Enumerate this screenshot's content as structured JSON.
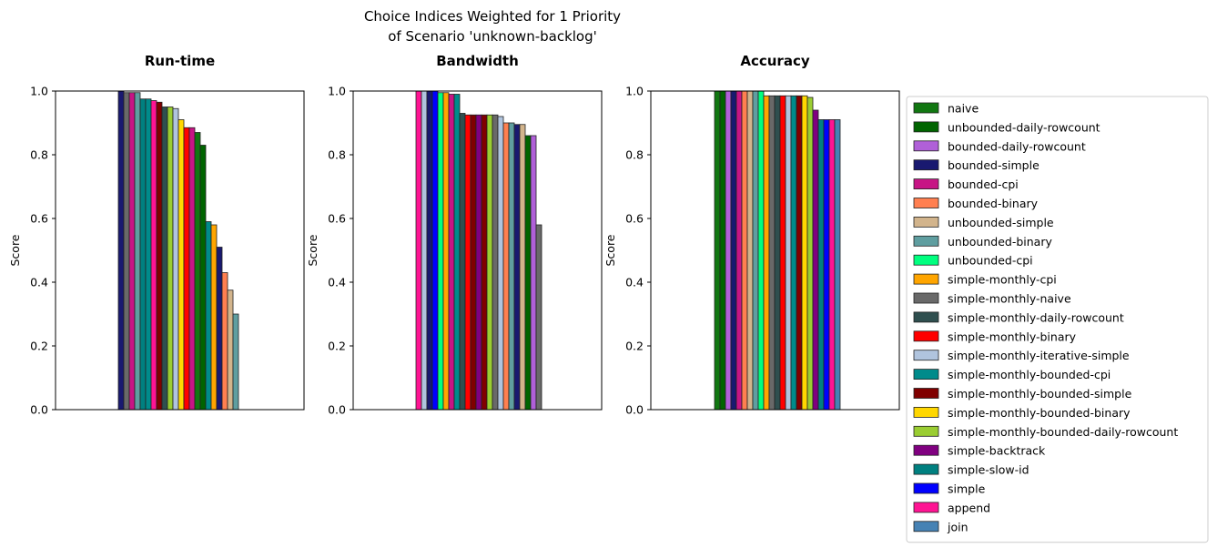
{
  "figure": {
    "suptitle_line1": "Choice Indices Weighted for 1 Priority",
    "suptitle_line2": "of Scenario 'unknown-backlog'"
  },
  "chart_data": [
    {
      "type": "bar",
      "title": "Run-time",
      "ylabel": "Score",
      "xlabel": "",
      "ylim": [
        0,
        1
      ],
      "yticks": [
        "0.0",
        "0.2",
        "0.4",
        "0.6",
        "0.8",
        "1.0"
      ],
      "grid": false,
      "bars": [
        {
          "series": "bounded-simple",
          "value": 1.0
        },
        {
          "series": "simple-monthly-naive",
          "value": 0.995
        },
        {
          "series": "bounded-cpi",
          "value": 0.995
        },
        {
          "series": "unbounded-binary",
          "value": 0.995
        },
        {
          "series": "simple-slow-id",
          "value": 0.975
        },
        {
          "series": "simple-monthly-bounded-cpi",
          "value": 0.975
        },
        {
          "series": "append",
          "value": 0.97
        },
        {
          "series": "simple-monthly-bounded-simple",
          "value": 0.965
        },
        {
          "series": "simple-monthly-daily-rowcount",
          "value": 0.95
        },
        {
          "series": "simple-monthly-bounded-daily-rowcount",
          "value": 0.95
        },
        {
          "series": "simple-monthly-iterative-simple",
          "value": 0.945
        },
        {
          "series": "simple-monthly-bounded-binary",
          "value": 0.91
        },
        {
          "series": "simple-monthly-binary",
          "value": 0.885
        },
        {
          "series": "bounded-cpi",
          "value": 0.885
        },
        {
          "series": "naive",
          "value": 0.87
        },
        {
          "series": "unbounded-daily-rowcount",
          "value": 0.83
        },
        {
          "series": "simple-monthly-bounded-cpi",
          "value": 0.59
        },
        {
          "series": "simple-monthly-cpi",
          "value": 0.58
        },
        {
          "series": "bounded-simple",
          "value": 0.51
        },
        {
          "series": "bounded-binary",
          "value": 0.43
        },
        {
          "series": "unbounded-simple",
          "value": 0.375
        },
        {
          "series": "unbounded-binary",
          "value": 0.3
        }
      ]
    },
    {
      "type": "bar",
      "title": "Bandwidth",
      "ylabel": "Score",
      "xlabel": "",
      "ylim": [
        0,
        1
      ],
      "yticks": [
        "0.0",
        "0.2",
        "0.4",
        "0.6",
        "0.8",
        "1.0"
      ],
      "grid": false,
      "bars": [
        {
          "series": "append",
          "value": 1.0
        },
        {
          "series": "simple-monthly-iterative-simple",
          "value": 1.0
        },
        {
          "series": "bounded-simple",
          "value": 1.0
        },
        {
          "series": "simple",
          "value": 1.0
        },
        {
          "series": "unbounded-cpi",
          "value": 0.995
        },
        {
          "series": "simple-monthly-cpi",
          "value": 0.995
        },
        {
          "series": "bounded-cpi",
          "value": 0.99
        },
        {
          "series": "simple-monthly-bounded-cpi",
          "value": 0.99
        },
        {
          "series": "simple-monthly-daily-rowcount",
          "value": 0.93
        },
        {
          "series": "simple-monthly-binary",
          "value": 0.925
        },
        {
          "series": "simple-monthly-bounded-simple",
          "value": 0.925
        },
        {
          "series": "simple-backtrack",
          "value": 0.925
        },
        {
          "series": "simple-monthly-bounded-simple",
          "value": 0.925
        },
        {
          "series": "simple-monthly-bounded-daily-rowcount",
          "value": 0.925
        },
        {
          "series": "simple-monthly-naive",
          "value": 0.925
        },
        {
          "series": "simple-monthly-iterative-simple",
          "value": 0.92
        },
        {
          "series": "bounded-binary",
          "value": 0.9
        },
        {
          "series": "unbounded-binary",
          "value": 0.9
        },
        {
          "series": "bounded-simple",
          "value": 0.895
        },
        {
          "series": "unbounded-simple",
          "value": 0.895
        },
        {
          "series": "unbounded-daily-rowcount",
          "value": 0.86
        },
        {
          "series": "bounded-daily-rowcount",
          "value": 0.86
        },
        {
          "series": "simple-monthly-naive",
          "value": 0.58
        }
      ]
    },
    {
      "type": "bar",
      "title": "Accuracy",
      "ylabel": "Score",
      "xlabel": "",
      "ylim": [
        0,
        1
      ],
      "yticks": [
        "0.0",
        "0.2",
        "0.4",
        "0.6",
        "0.8",
        "1.0"
      ],
      "grid": false,
      "bars": [
        {
          "series": "naive",
          "value": 1.0
        },
        {
          "series": "unbounded-daily-rowcount",
          "value": 1.0
        },
        {
          "series": "bounded-daily-rowcount",
          "value": 1.0
        },
        {
          "series": "bounded-simple",
          "value": 1.0
        },
        {
          "series": "bounded-cpi",
          "value": 1.0
        },
        {
          "series": "bounded-binary",
          "value": 1.0
        },
        {
          "series": "unbounded-simple",
          "value": 1.0
        },
        {
          "series": "unbounded-binary",
          "value": 1.0
        },
        {
          "series": "unbounded-cpi",
          "value": 1.0
        },
        {
          "series": "simple-monthly-cpi",
          "value": 0.985
        },
        {
          "series": "simple-monthly-naive",
          "value": 0.985
        },
        {
          "series": "simple-monthly-daily-rowcount",
          "value": 0.985
        },
        {
          "series": "simple-monthly-binary",
          "value": 0.985
        },
        {
          "series": "simple-monthly-iterative-simple",
          "value": 0.985
        },
        {
          "series": "simple-monthly-bounded-cpi",
          "value": 0.985
        },
        {
          "series": "simple-monthly-bounded-simple",
          "value": 0.985
        },
        {
          "series": "simple-monthly-bounded-binary",
          "value": 0.985
        },
        {
          "series": "simple-monthly-bounded-daily-rowcount",
          "value": 0.98
        },
        {
          "series": "simple-backtrack",
          "value": 0.94
        },
        {
          "series": "simple-slow-id",
          "value": 0.91
        },
        {
          "series": "simple",
          "value": 0.91
        },
        {
          "series": "append",
          "value": 0.91
        },
        {
          "series": "join",
          "value": 0.91
        }
      ]
    }
  ],
  "legend": {
    "placement": "right",
    "entries": [
      {
        "name": "naive",
        "color": "#117711"
      },
      {
        "name": "unbounded-daily-rowcount",
        "color": "#006400"
      },
      {
        "name": "bounded-daily-rowcount",
        "color": "#b060d8"
      },
      {
        "name": "bounded-simple",
        "color": "#191970"
      },
      {
        "name": "bounded-cpi",
        "color": "#c71585"
      },
      {
        "name": "bounded-binary",
        "color": "#ff7f50"
      },
      {
        "name": "unbounded-simple",
        "color": "#d2b48c"
      },
      {
        "name": "unbounded-binary",
        "color": "#5f9ea0"
      },
      {
        "name": "unbounded-cpi",
        "color": "#00ff7f"
      },
      {
        "name": "simple-monthly-cpi",
        "color": "#ffa500"
      },
      {
        "name": "simple-monthly-naive",
        "color": "#696969"
      },
      {
        "name": "simple-monthly-daily-rowcount",
        "color": "#2f4f4f"
      },
      {
        "name": "simple-monthly-binary",
        "color": "#ff0000"
      },
      {
        "name": "simple-monthly-iterative-simple",
        "color": "#b0c4de"
      },
      {
        "name": "simple-monthly-bounded-cpi",
        "color": "#008b8b"
      },
      {
        "name": "simple-monthly-bounded-simple",
        "color": "#800000"
      },
      {
        "name": "simple-monthly-bounded-binary",
        "color": "#ffd700"
      },
      {
        "name": "simple-monthly-bounded-daily-rowcount",
        "color": "#9acd32"
      },
      {
        "name": "simple-backtrack",
        "color": "#800080"
      },
      {
        "name": "simple-slow-id",
        "color": "#008080"
      },
      {
        "name": "simple",
        "color": "#0000ff"
      },
      {
        "name": "append",
        "color": "#ff1493"
      },
      {
        "name": "join",
        "color": "#4682b4"
      }
    ]
  }
}
